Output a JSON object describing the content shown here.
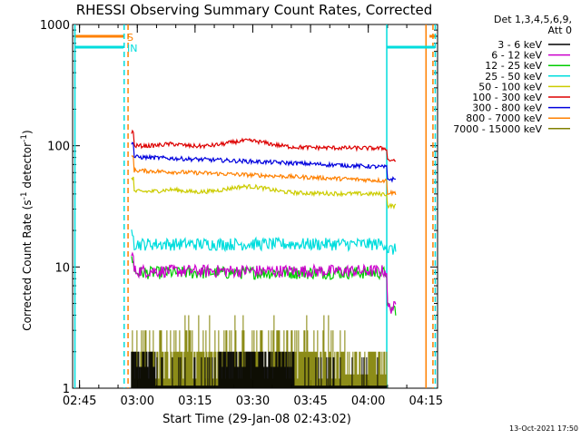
{
  "chart_data": {
    "type": "line",
    "title": "RHESSI Observing Summary Count Rates, Corrected",
    "xlabel": "Start Time (29-Jan-08 02:43:02)",
    "ylabel": "Corrected Count Rate (s",
    "ylabel_sup1": "-1",
    "ylabel_mid": " detector",
    "ylabel_sup2": "-1",
    "ylabel_end": ")",
    "y_scale": "log",
    "ylim": [
      1,
      1000
    ],
    "xlim_min": [
      2.72,
      4.3
    ],
    "x_ticks": [
      "02:45",
      "03:00",
      "03:15",
      "03:30",
      "03:45",
      "04:00",
      "04:15"
    ],
    "x_tick_values_h": [
      2.75,
      3.0,
      3.25,
      3.5,
      3.75,
      4.0,
      4.25
    ],
    "y_ticks": [
      "1",
      "10",
      "100",
      "1000"
    ],
    "y_tick_values": [
      1,
      10,
      100,
      1000
    ],
    "legend_header": [
      "Det 1,3,4,5,6,9,",
      "Att 0"
    ],
    "legend_position": "right",
    "footer_timestamp": "13-Oct-2021 17:50",
    "data_window_h": [
      2.975,
      4.12
    ],
    "series": [
      {
        "name": "3 - 6 keV",
        "color": "#000000",
        "level": 1.0,
        "kind": "spiky"
      },
      {
        "name": "6 - 12 keV",
        "color": "#cc00cc",
        "level": 9.3,
        "kind": "noisy"
      },
      {
        "name": "12 - 25 keV",
        "color": "#00cc00",
        "level": 9.0,
        "kind": "noisy"
      },
      {
        "name": "25 - 50 keV",
        "color": "#00dddd",
        "level": 15.5,
        "kind": "noisy"
      },
      {
        "name": "50 - 100 keV",
        "color": "#cccc00",
        "level": 42,
        "kind": "hump"
      },
      {
        "name": "100 - 300 keV",
        "color": "#dd0000",
        "level": 100,
        "kind": "hump"
      },
      {
        "name": "300 - 800 keV",
        "color": "#0000dd",
        "level": 75,
        "kind": "decline"
      },
      {
        "name": "800 - 7000 keV",
        "color": "#ff8000",
        "level": 58,
        "kind": "decline"
      },
      {
        "name": "7000 - 15000 keV",
        "color": "#808000",
        "level": 1.3,
        "kind": "spiky"
      }
    ],
    "annotations": [
      {
        "label": "S",
        "color": "#ff8000"
      },
      {
        "label": "IN",
        "color": "#00dddd"
      }
    ],
    "flag_lines": [
      {
        "type": "attenuator",
        "color": "#ff8000",
        "value": 800,
        "intervals_h": [
          [
            2.73,
            2.94
          ],
          [
            4.265,
            4.29
          ]
        ],
        "markers_h": [
          2.96,
          4.25,
          4.28
        ]
      },
      {
        "type": "saa_in",
        "color": "#00dddd",
        "value": 650,
        "intervals_h": [
          [
            2.73,
            2.94
          ],
          [
            4.08,
            4.29
          ]
        ],
        "markers_h": [
          2.73,
          2.943,
          4.08,
          4.29
        ]
      }
    ]
  }
}
